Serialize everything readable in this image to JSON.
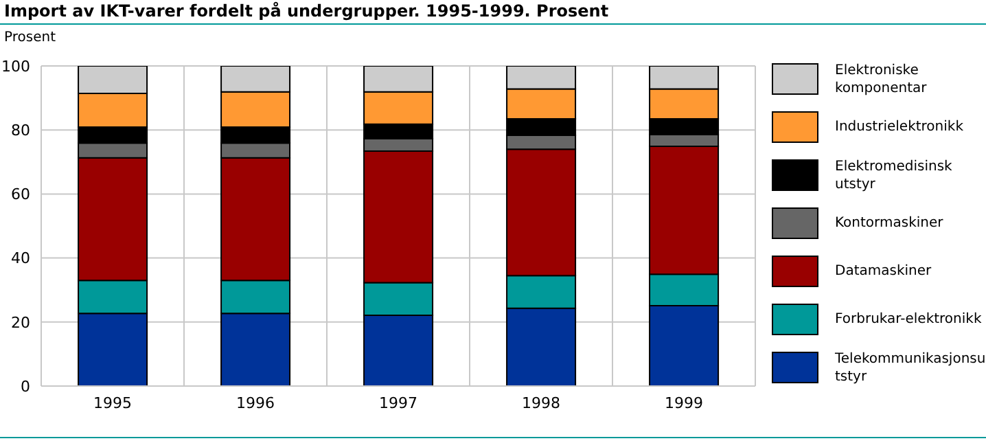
{
  "chart_data": {
    "type": "bar",
    "title": "Import av IKT-varer fordelt på undergrupper. 1995-1999. Prosent",
    "ylabel": "Prosent",
    "categories": [
      "1995",
      "1996",
      "1997",
      "1998",
      "1999"
    ],
    "stacked": true,
    "ylim": [
      0,
      100
    ],
    "yticks": [
      0,
      20,
      40,
      60,
      80,
      100
    ],
    "grid": true,
    "legend": "right",
    "series": [
      {
        "name": "Telekommunikasjonsutstyr",
        "color": "#003399",
        "values": [
          22.7,
          22.7,
          22.1,
          24.3,
          25.1
        ]
      },
      {
        "name": "Forbrukar-elektronikk",
        "color": "#009999",
        "values": [
          10.3,
          10.3,
          10.2,
          10.2,
          9.8
        ]
      },
      {
        "name": "Datamaskiner",
        "color": "#990000",
        "values": [
          38.3,
          38.3,
          41.1,
          39.5,
          40.0
        ]
      },
      {
        "name": "Kontormaskiner",
        "color": "#666666",
        "values": [
          4.6,
          4.6,
          3.9,
          4.3,
          3.7
        ]
      },
      {
        "name": "Elektromedisinsk utstyr",
        "color": "#000000",
        "values": [
          5.0,
          5.0,
          4.5,
          5.2,
          4.9
        ]
      },
      {
        "name": "Industrielektronikk",
        "color": "#ff9933",
        "values": [
          10.5,
          11.0,
          10.1,
          9.3,
          9.3
        ]
      },
      {
        "name": "Elektroniske komponentar",
        "color": "#cccccc",
        "values": [
          8.6,
          8.1,
          8.1,
          7.2,
          7.2
        ]
      }
    ]
  }
}
